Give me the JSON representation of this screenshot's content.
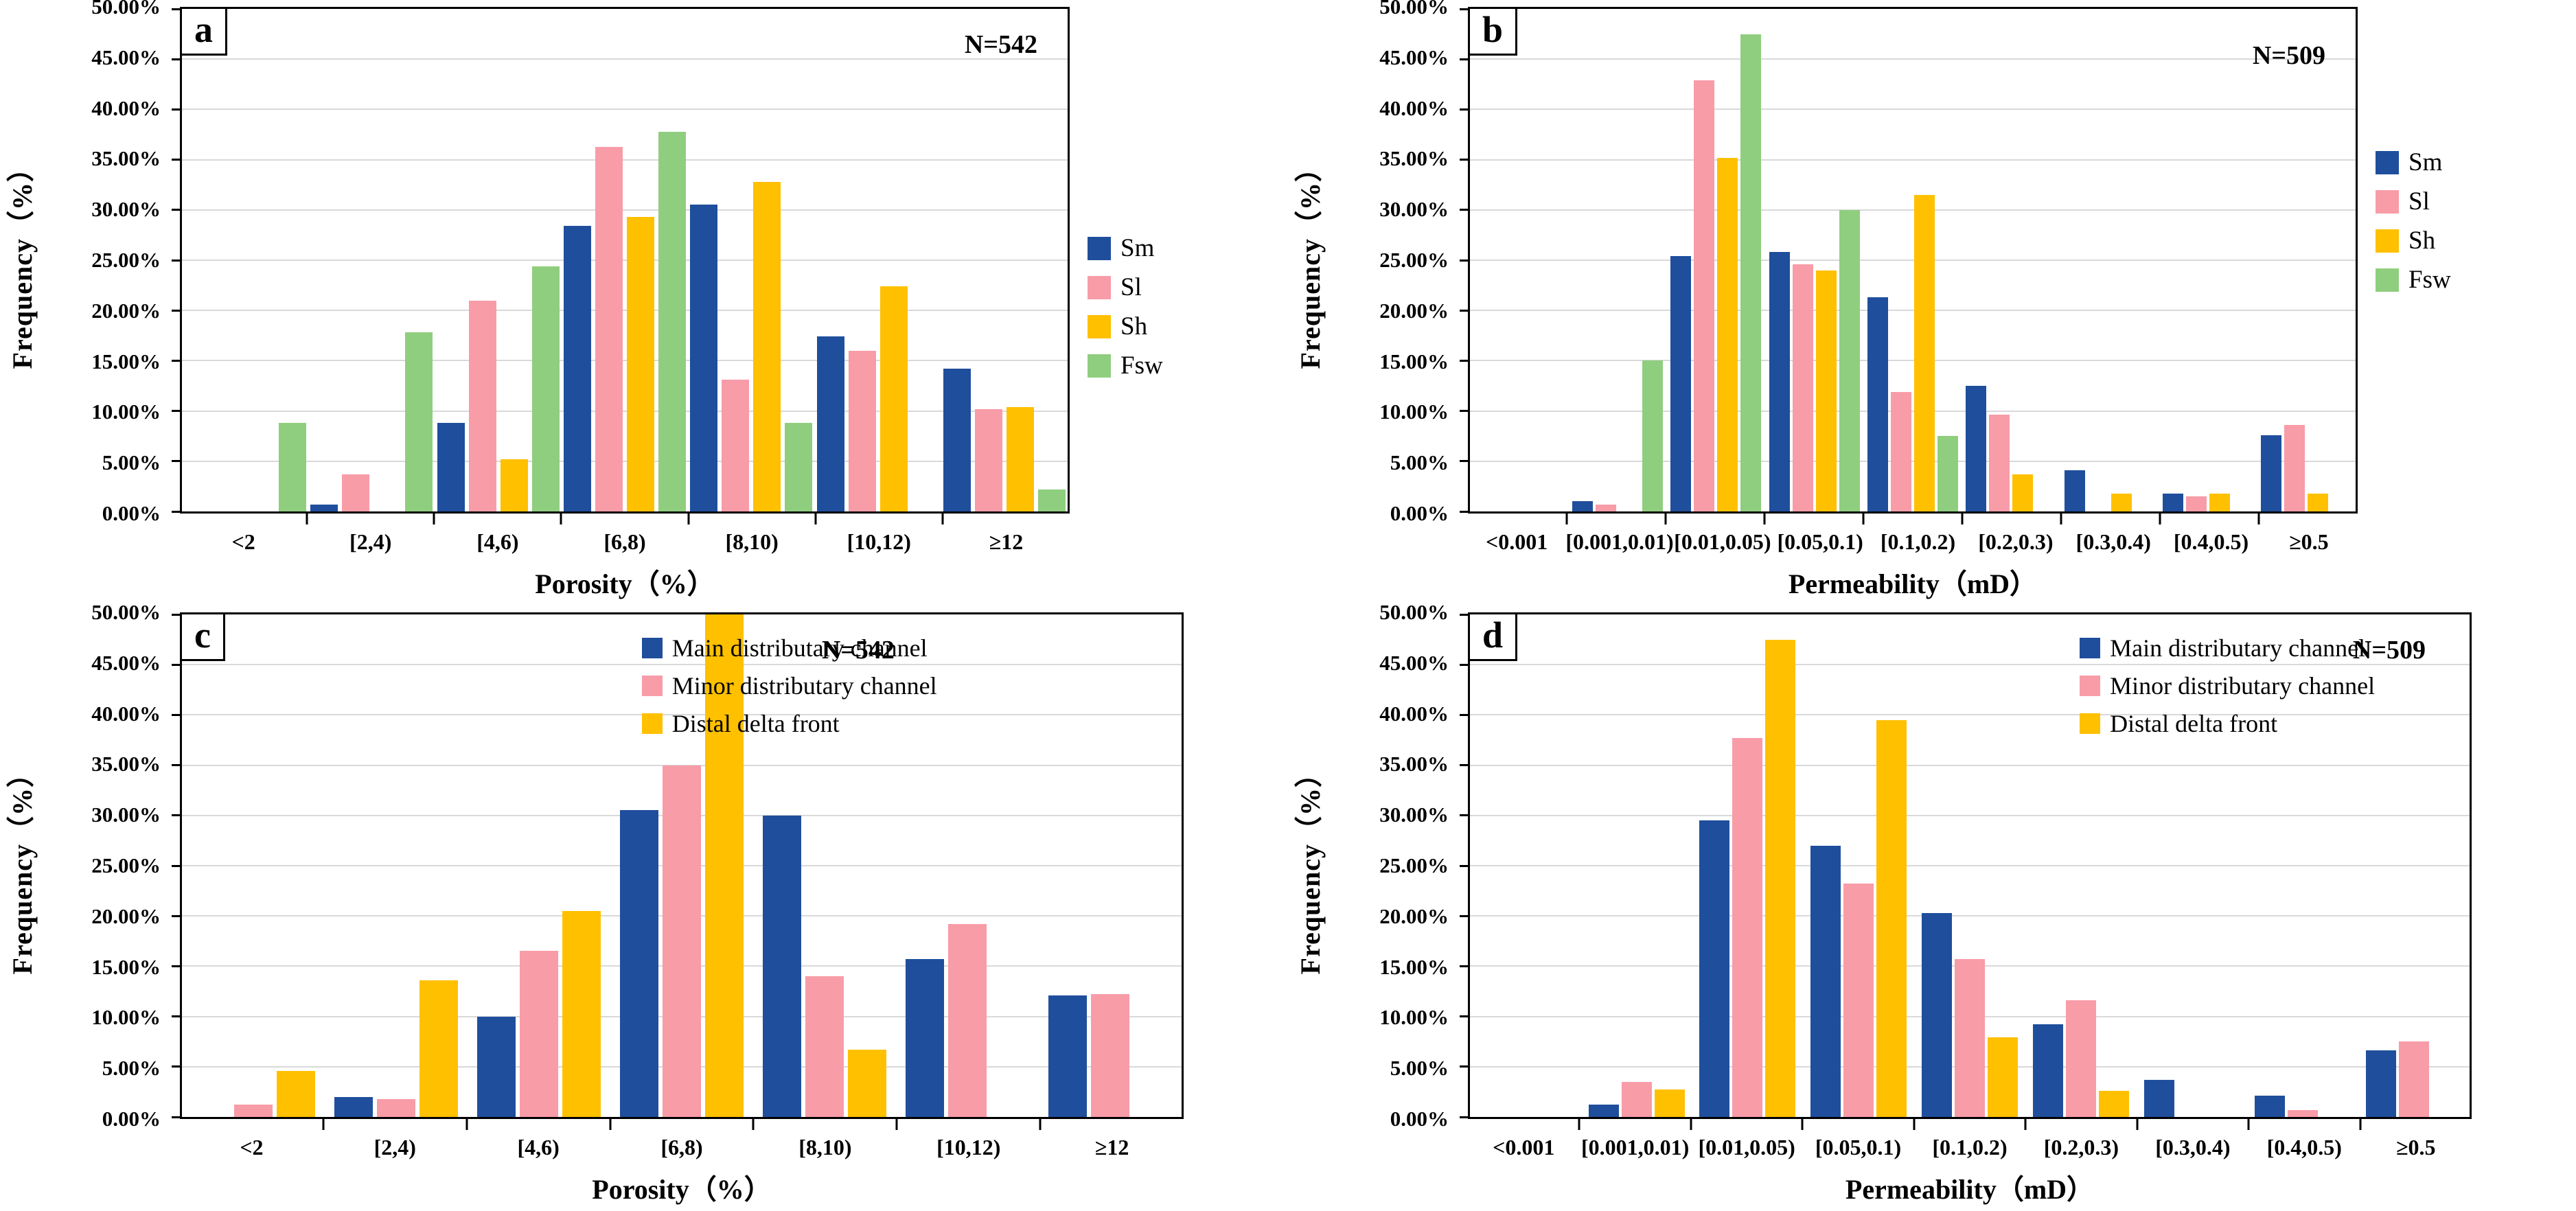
{
  "figure": {
    "background_color": "#ffffff",
    "grid_color": "#d9d9d9",
    "axis_color": "#000000",
    "series_colors": {
      "Sm": "#1f4e9c",
      "Sl": "#f89ca8",
      "Sh": "#ffc000",
      "Fsw": "#8fce7e",
      "Main distributary channel": "#1f4e9c",
      "Minor distributary channel": "#f89ca8",
      "Distal delta front": "#ffc000"
    }
  },
  "chart_data": [
    {
      "id": "a",
      "type": "bar",
      "panel_label": "a",
      "n_label": "N=542",
      "xlabel": "Porosity（%）",
      "ylabel": "Frequency（%）",
      "ylim": [
        0,
        50
      ],
      "ytick_step": 5,
      "grid": true,
      "legend_position": "right-outside",
      "yticks": [
        "50.00%",
        "45.00%",
        "40.00%",
        "35.00%",
        "30.00%",
        "25.00%",
        "20.00%",
        "15.00%",
        "10.00%",
        "5.00%",
        "0.00%"
      ],
      "categories": [
        "<2",
        "[2,4)",
        "[4,6)",
        "[6,8)",
        "[8,10)",
        "[10,12)",
        "≥12"
      ],
      "series": [
        {
          "name": "Sm",
          "color": "#1f4e9c",
          "values": [
            0,
            0.7,
            8.8,
            28.4,
            30.5,
            17.4,
            14.2
          ]
        },
        {
          "name": "Sl",
          "color": "#f89ca8",
          "values": [
            0,
            3.7,
            21.0,
            36.3,
            13.1,
            16.0,
            10.2
          ]
        },
        {
          "name": "Sh",
          "color": "#ffc000",
          "values": [
            0,
            0,
            5.2,
            29.3,
            32.8,
            22.4,
            10.4
          ]
        },
        {
          "name": "Fsw",
          "color": "#8fce7e",
          "values": [
            8.8,
            17.8,
            24.4,
            37.8,
            8.8,
            0,
            2.2
          ]
        }
      ]
    },
    {
      "id": "b",
      "type": "bar",
      "panel_label": "b",
      "n_label": "N=509",
      "xlabel": "Permeability（mD）",
      "ylabel": "Frequency（%）",
      "ylim": [
        0,
        50
      ],
      "ytick_step": 5,
      "grid": true,
      "legend_position": "right-outside",
      "yticks": [
        "50.00%",
        "45.00%",
        "40.00%",
        "35.00%",
        "30.00%",
        "25.00%",
        "20.00%",
        "15.00%",
        "10.00%",
        "5.00%",
        "0.00%"
      ],
      "categories": [
        "<0.001",
        "[0.001,0.01)",
        "[0.01,0.05)",
        "[0.05,0.1)",
        "[0.1,0.2)",
        "[0.2,0.3)",
        "[0.3,0.4)",
        "[0.4,0.5)",
        "≥0.5"
      ],
      "series": [
        {
          "name": "Sm",
          "color": "#1f4e9c",
          "values": [
            0,
            1.0,
            25.4,
            25.8,
            21.3,
            12.5,
            4.1,
            1.8,
            7.6
          ]
        },
        {
          "name": "Sl",
          "color": "#f89ca8",
          "values": [
            0,
            0.7,
            42.9,
            24.6,
            11.9,
            9.6,
            0,
            1.5,
            8.6
          ]
        },
        {
          "name": "Sh",
          "color": "#ffc000",
          "values": [
            0,
            0,
            35.2,
            24.0,
            31.5,
            3.7,
            1.8,
            1.8,
            1.8
          ]
        },
        {
          "name": "Fsw",
          "color": "#8fce7e",
          "values": [
            0,
            15.0,
            47.5,
            30.0,
            7.5,
            0,
            0,
            0,
            0
          ]
        }
      ]
    },
    {
      "id": "c",
      "type": "bar",
      "panel_label": "c",
      "n_label": "N=542",
      "xlabel": "Porosity（%）",
      "ylabel": "Frequency（%）",
      "ylim": [
        0,
        50
      ],
      "ytick_step": 5,
      "grid": true,
      "legend_position": "inside-top",
      "yticks": [
        "50.00%",
        "45.00%",
        "40.00%",
        "35.00%",
        "30.00%",
        "25.00%",
        "20.00%",
        "15.00%",
        "10.00%",
        "5.00%",
        "0.00%"
      ],
      "categories": [
        "<2",
        "[2,4)",
        "[4,6)",
        "[6,8)",
        "[8,10)",
        "[10,12)",
        "≥12"
      ],
      "series": [
        {
          "name": "Main distributary channel",
          "color": "#1f4e9c",
          "values": [
            0,
            2.0,
            10.0,
            30.5,
            30.0,
            15.7,
            12.1
          ]
        },
        {
          "name": "Minor distributary channel",
          "color": "#f89ca8",
          "values": [
            1.2,
            1.8,
            16.5,
            35.0,
            14.0,
            19.2,
            12.2
          ]
        },
        {
          "name": "Distal delta front",
          "color": "#ffc000",
          "values": [
            4.6,
            13.6,
            20.5,
            50.0,
            6.7,
            0,
            0
          ]
        }
      ]
    },
    {
      "id": "d",
      "type": "bar",
      "panel_label": "d",
      "n_label": "N=509",
      "xlabel": "Permeability（mD）",
      "ylabel": "Frequency（%）",
      "ylim": [
        0,
        50
      ],
      "ytick_step": 5,
      "grid": true,
      "legend_position": "inside-top",
      "yticks": [
        "50.00%",
        "45.00%",
        "40.00%",
        "35.00%",
        "30.00%",
        "25.00%",
        "20.00%",
        "15.00%",
        "10.00%",
        "5.00%",
        "0.00%"
      ],
      "categories": [
        "<0.001",
        "[0.001,0.01)",
        "[0.01,0.05)",
        "[0.05,0.1)",
        "[0.1,0.2)",
        "[0.2,0.3)",
        "[0.3,0.4)",
        "[0.4,0.5)",
        "≥0.5"
      ],
      "series": [
        {
          "name": "Main distributary channel",
          "color": "#1f4e9c",
          "values": [
            0,
            1.2,
            29.5,
            27.0,
            20.3,
            9.2,
            3.7,
            2.1,
            6.6
          ]
        },
        {
          "name": "Minor distributary channel",
          "color": "#f89ca8",
          "values": [
            0,
            3.5,
            37.7,
            23.2,
            15.7,
            11.6,
            0,
            0.7,
            7.5
          ]
        },
        {
          "name": "Distal delta front",
          "color": "#ffc000",
          "values": [
            0,
            2.7,
            47.5,
            39.5,
            7.9,
            2.6,
            0,
            0,
            0
          ]
        }
      ]
    }
  ]
}
